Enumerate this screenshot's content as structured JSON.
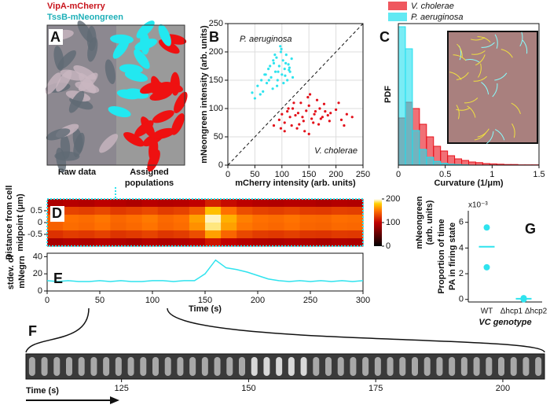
{
  "panel_a": {
    "letter": "A",
    "channels": [
      "VipA-mCherry",
      "TssB-mNeongreen"
    ],
    "raw": "Raw data",
    "assigned": [
      "Assigned",
      "populations"
    ]
  },
  "chart_data": [
    {
      "type": "scatter",
      "panel": "B",
      "xlabel": "mCherry intensity (arb. units)",
      "ylabel": "mNeongreen intensity (arb. units)",
      "xlim": [
        0,
        250
      ],
      "ylim": [
        0,
        250
      ],
      "xticks": [
        0,
        50,
        100,
        150,
        200,
        250
      ],
      "yticks": [
        0,
        50,
        100,
        150,
        200,
        250
      ],
      "grid": true,
      "series": [
        {
          "name": "P. aeruginosa",
          "color": "#2fe3ee",
          "x": [
            55,
            62,
            70,
            75,
            80,
            85,
            88,
            90,
            92,
            95,
            98,
            100,
            102,
            105,
            108,
            110,
            112,
            115,
            118,
            120,
            65,
            72,
            78,
            83,
            87,
            93,
            97,
            103,
            107,
            113,
            60,
            68,
            76,
            84,
            91,
            99,
            106,
            114,
            50,
            45
          ],
          "values": [
            140,
            150,
            160,
            170,
            155,
            180,
            165,
            190,
            150,
            175,
            200,
            160,
            185,
            170,
            195,
            150,
            178,
            165,
            188,
            155,
            130,
            145,
            175,
            135,
            195,
            165,
            210,
            145,
            180,
            168,
            125,
            160,
            150,
            185,
            140,
            205,
            158,
            172,
            118,
            128
          ]
        },
        {
          "name": "V. cholerae",
          "color": "#e3101a",
          "x": [
            85,
            95,
            100,
            105,
            110,
            115,
            120,
            125,
            130,
            135,
            140,
            145,
            150,
            155,
            160,
            165,
            170,
            175,
            180,
            185,
            190,
            200,
            210,
            220,
            230,
            105,
            118,
            128,
            138,
            148,
            158,
            168,
            178,
            188,
            112,
            132,
            142,
            152,
            162,
            172,
            122,
            98,
            205,
            215,
            150
          ],
          "values": [
            70,
            80,
            90,
            75,
            95,
            85,
            100,
            88,
            92,
            110,
            78,
            96,
            105,
            82,
            90,
            115,
            100,
            85,
            95,
            88,
            92,
            98,
            80,
            90,
            85,
            60,
            70,
            65,
            85,
            120,
            75,
            72,
            108,
            78,
            100,
            72,
            60,
            125,
            95,
            82,
            110,
            65,
            110,
            70,
            55
          ]
        }
      ]
    },
    {
      "type": "histogram",
      "panel": "C",
      "xlabel": "Curvature (1/μm)",
      "ylabel": "PDF",
      "xlim": [
        0,
        1.5
      ],
      "ylim": [
        0,
        4.5
      ],
      "xticks": [
        0,
        0.5,
        1,
        1.5
      ],
      "bins": [
        0,
        0.075,
        0.15,
        0.225,
        0.3,
        0.375,
        0.45,
        0.525,
        0.6,
        0.675,
        0.75,
        0.825,
        0.9,
        0.975,
        1.05,
        1.125,
        1.2,
        1.275,
        1.35,
        1.425,
        1.5
      ],
      "series": [
        {
          "name": "V. cholerae",
          "color": "#e8101a",
          "values": [
            1.5,
            2.0,
            1.8,
            1.3,
            0.9,
            0.6,
            0.45,
            0.3,
            0.2,
            0.15,
            0.1,
            0.08,
            0.05,
            0.04,
            0.03,
            0.02,
            0.02,
            0.01,
            0.01,
            0.01
          ]
        },
        {
          "name": "P. aeruginosa",
          "color": "#20e0ee",
          "values": [
            4.4,
            3.7,
            1.1,
            0.5,
            0.25,
            0.12,
            0.06,
            0.03,
            0.02,
            0.01,
            0,
            0,
            0,
            0,
            0,
            0,
            0,
            0,
            0,
            0
          ]
        }
      ]
    },
    {
      "type": "heatmap",
      "panel": "D",
      "ylabel": [
        "Distance from cell",
        "midpoint (μm)"
      ],
      "xlim": [
        0,
        300
      ],
      "ylim": [
        -1,
        1
      ],
      "yticks": [
        0.5,
        0,
        -0.5
      ],
      "zlim": [
        0,
        200
      ],
      "zticks": [
        0,
        100,
        200
      ],
      "zlabel": [
        "mNeongreen",
        "(arb. units)"
      ],
      "values": [
        [
          90,
          95,
          92,
          98,
          94,
          90,
          96,
          93,
          95,
          100,
          115,
          105,
          98,
          94,
          92,
          95,
          93,
          90,
          94,
          92
        ],
        [
          125,
          130,
          128,
          132,
          126,
          129,
          133,
          127,
          130,
          140,
          175,
          150,
          135,
          130,
          128,
          131,
          127,
          126,
          129,
          128
        ],
        [
          145,
          150,
          148,
          152,
          146,
          149,
          153,
          147,
          150,
          165,
          195,
          170,
          155,
          150,
          148,
          151,
          147,
          146,
          149,
          148
        ],
        [
          143,
          148,
          146,
          150,
          144,
          147,
          151,
          145,
          148,
          160,
          190,
          165,
          152,
          148,
          146,
          149,
          145,
          144,
          147,
          146
        ],
        [
          122,
          127,
          125,
          129,
          123,
          126,
          130,
          124,
          127,
          135,
          165,
          145,
          132,
          127,
          125,
          128,
          124,
          123,
          126,
          125
        ],
        [
          88,
          92,
          90,
          95,
          91,
          87,
          93,
          90,
          92,
          97,
          110,
          100,
          95,
          91,
          89,
          92,
          90,
          87,
          91,
          89
        ]
      ]
    },
    {
      "type": "line",
      "panel": "E",
      "xlabel": "Time (s)",
      "ylabel": [
        "stdev. of",
        "mNegrn"
      ],
      "xlim": [
        0,
        300
      ],
      "ylim": [
        0,
        44
      ],
      "xticks": [
        0,
        50,
        100,
        150,
        200,
        250,
        300
      ],
      "yticks": [
        0,
        20,
        40
      ],
      "color": "#2fe3ee",
      "x": [
        0,
        10,
        20,
        30,
        40,
        50,
        60,
        70,
        80,
        90,
        100,
        110,
        120,
        130,
        140,
        150,
        160,
        170,
        180,
        190,
        200,
        210,
        220,
        230,
        240,
        250,
        260,
        270,
        280,
        290,
        300
      ],
      "values": [
        12,
        11,
        12,
        11,
        11,
        12,
        11,
        12,
        11,
        11,
        12,
        12,
        11,
        12,
        12,
        20,
        36,
        27,
        25,
        22,
        18,
        14,
        12,
        11,
        12,
        11,
        12,
        11,
        12,
        11,
        12
      ]
    },
    {
      "type": "timeline",
      "panel": "F",
      "xlabel": "Time (s)",
      "xlim": [
        106.2,
        208.2
      ],
      "xticks": [
        125,
        150,
        175,
        200
      ]
    },
    {
      "type": "dot",
      "panel": "G",
      "ylabel": [
        "Proportion of time",
        "PA in firing state"
      ],
      "xlabel": "VC genotype",
      "scale": "x10⁻³",
      "categories": [
        "WT",
        "Δhcp1 Δhcp2"
      ],
      "ylim": [
        -0.2,
        6.9
      ],
      "yticks": [
        0,
        2,
        4,
        6
      ],
      "color": "#2fe3ee",
      "values": [
        [
          5.6,
          2.5
        ],
        [
          0.1,
          0.0
        ]
      ],
      "means": [
        4.1,
        0.05
      ]
    }
  ]
}
